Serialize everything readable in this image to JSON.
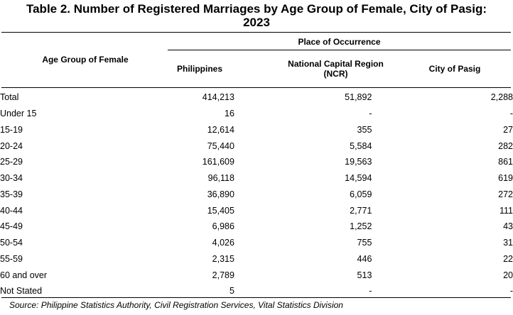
{
  "title_line1": "Table 2.  Number of Registered Marriages by Age Group of Female, City of Pasig:",
  "title_line2": "2023",
  "header": {
    "row_header": "Age Group of Female",
    "group_header": "Place of Occurrence",
    "col1": "Philippines",
    "col2_line1": "National Capital Region",
    "col2_line2": "(NCR)",
    "col3": "City of Pasig"
  },
  "rows": [
    {
      "label": "Total",
      "philippines": "414,213",
      "ncr": "51,892",
      "pasig": "2,288"
    },
    {
      "label": "Under 15",
      "philippines": "16",
      "ncr": "-",
      "pasig": "-"
    },
    {
      "label": "15-19",
      "philippines": "12,614",
      "ncr": "355",
      "pasig": "27"
    },
    {
      "label": "20-24",
      "philippines": "75,440",
      "ncr": "5,584",
      "pasig": "282"
    },
    {
      "label": "25-29",
      "philippines": "161,609",
      "ncr": "19,563",
      "pasig": "861"
    },
    {
      "label": "30-34",
      "philippines": "96,118",
      "ncr": "14,594",
      "pasig": "619"
    },
    {
      "label": "35-39",
      "philippines": "36,890",
      "ncr": "6,059",
      "pasig": "272"
    },
    {
      "label": "40-44",
      "philippines": "15,405",
      "ncr": "2,771",
      "pasig": "111"
    },
    {
      "label": "45-49",
      "philippines": "6,986",
      "ncr": "1,252",
      "pasig": "43"
    },
    {
      "label": "50-54",
      "philippines": "4,026",
      "ncr": "755",
      "pasig": "31"
    },
    {
      "label": "55-59",
      "philippines": "2,315",
      "ncr": "446",
      "pasig": "22"
    },
    {
      "label": "60 and over",
      "philippines": "2,789",
      "ncr": "513",
      "pasig": "20"
    },
    {
      "label": "Not Stated",
      "philippines": "5",
      "ncr": "-",
      "pasig": "-"
    }
  ],
  "source": "Source: Philippine Statistics Authority, Civil Registration Services, Vital Statistics Division"
}
